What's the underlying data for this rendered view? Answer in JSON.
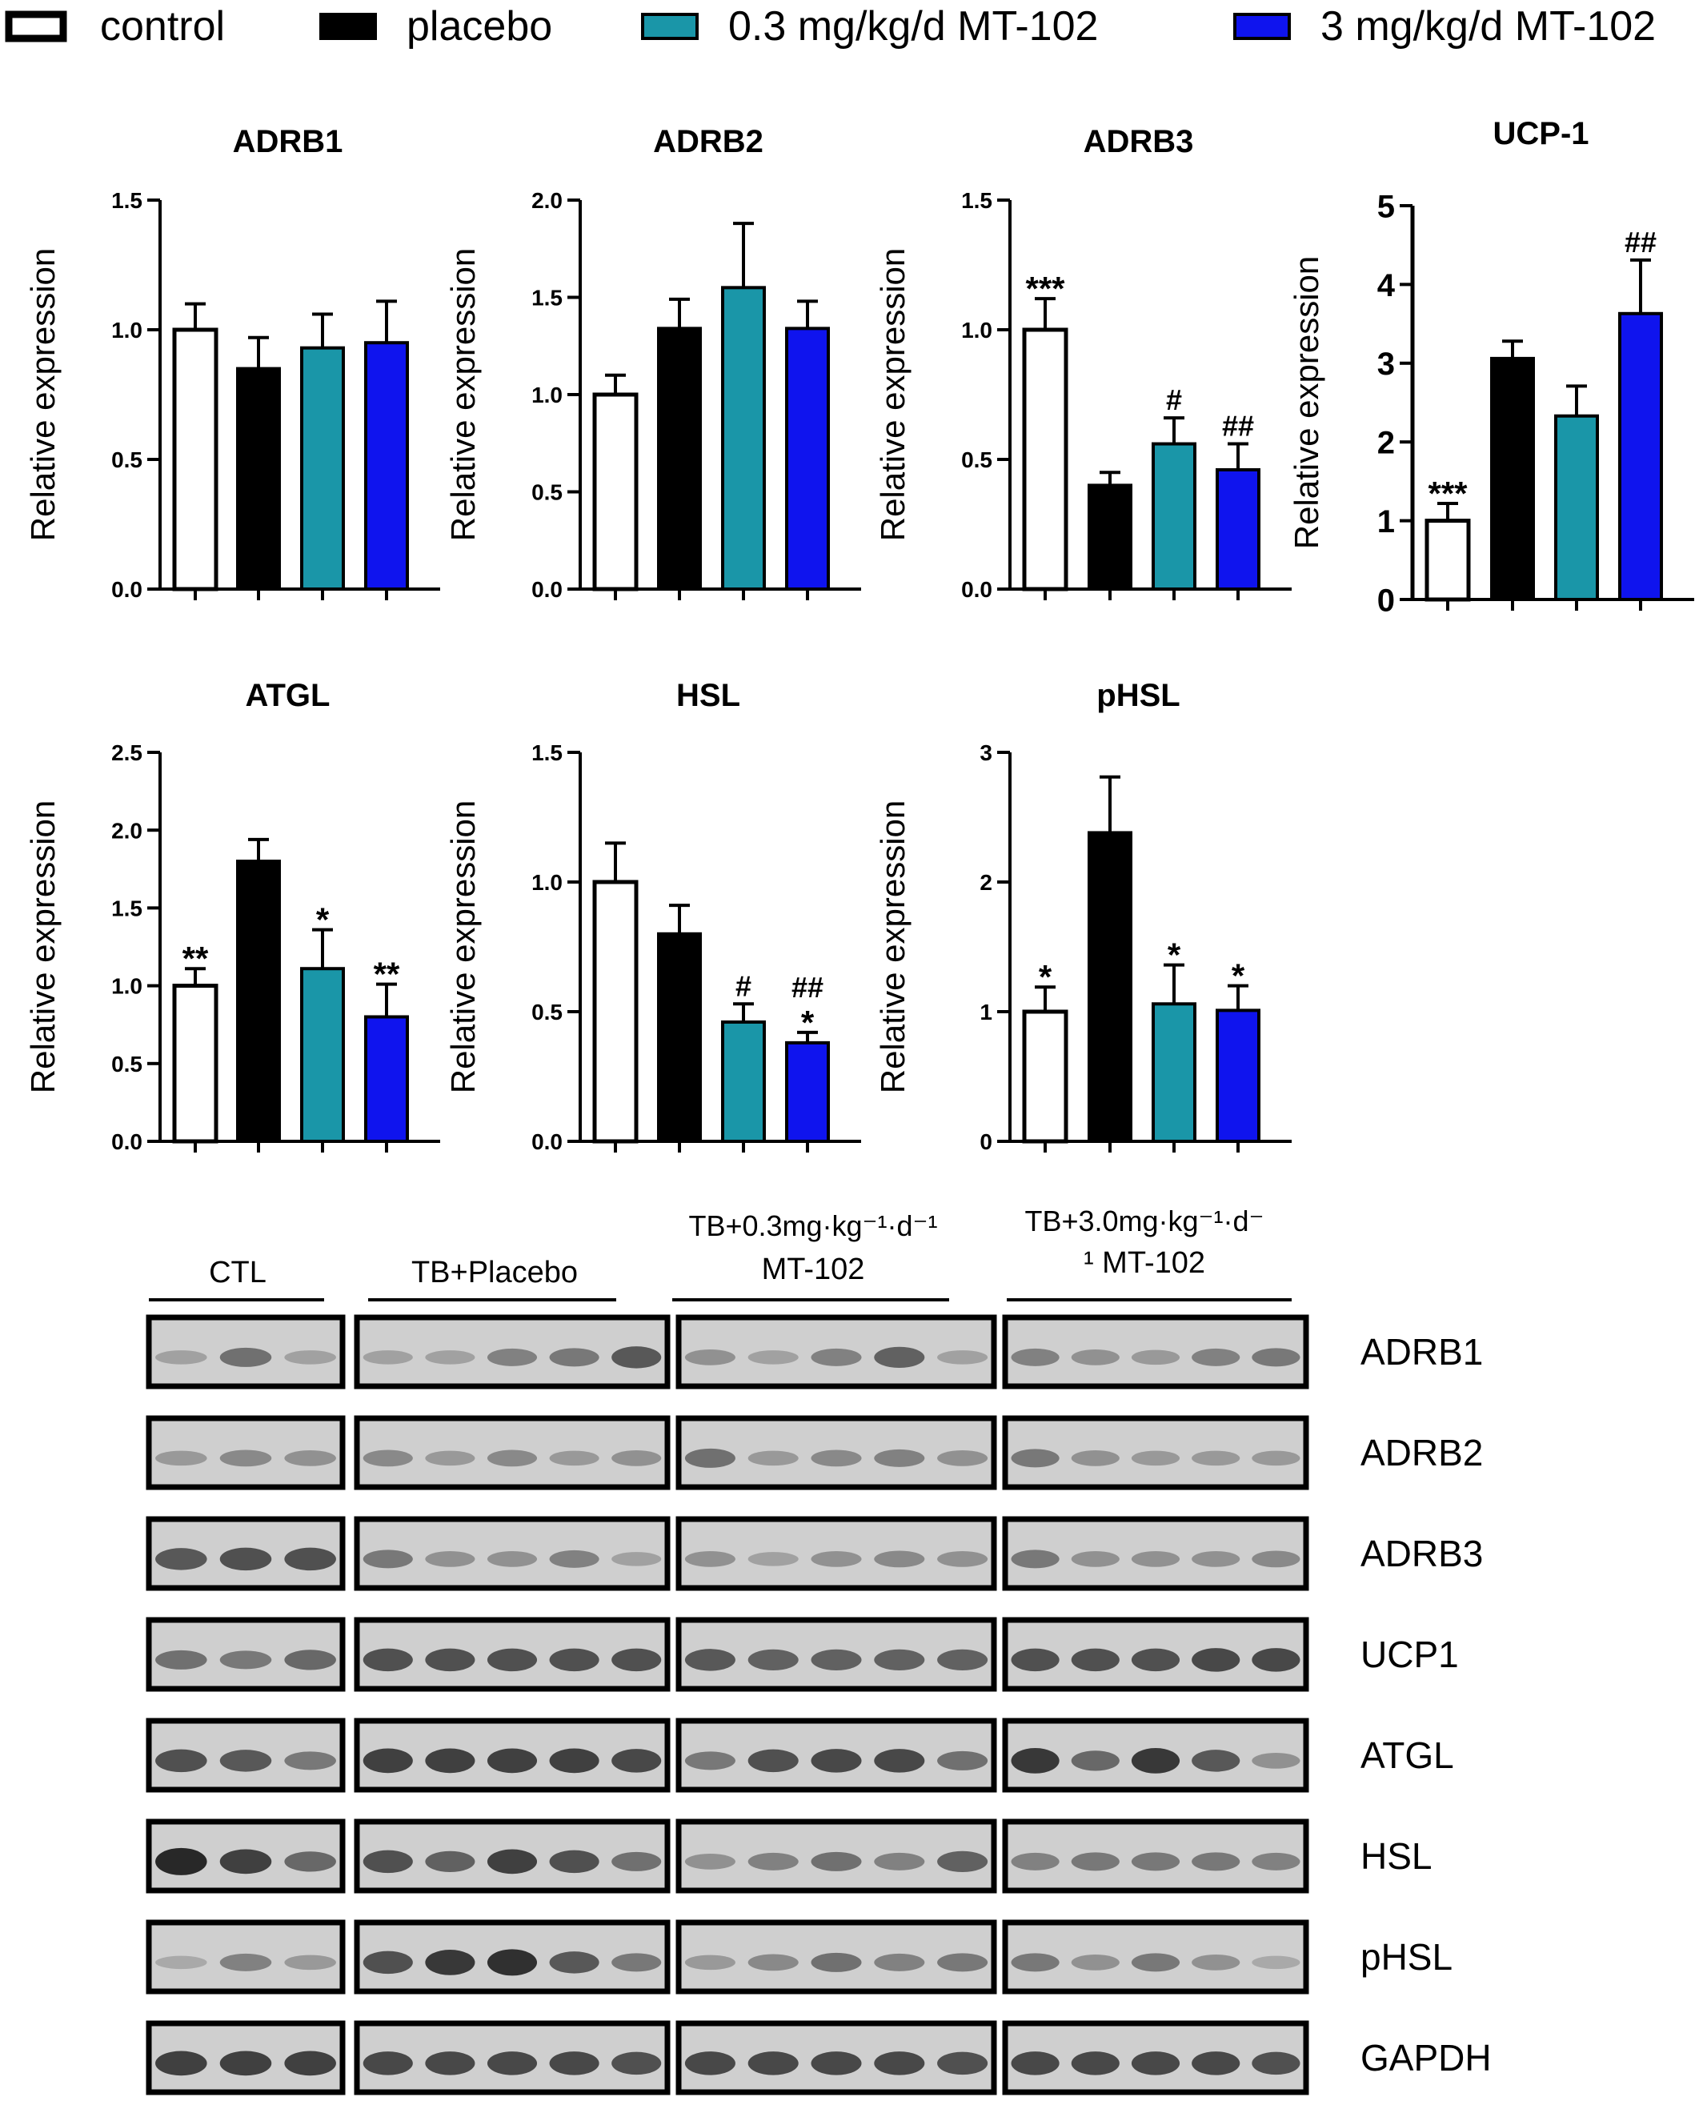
{
  "legend": [
    {
      "label": "control",
      "color": "#ffffff"
    },
    {
      "label": "placebo",
      "color": "#000000"
    },
    {
      "label": "0.3 mg/kg/d MT-102",
      "color": "#1a96a8"
    },
    {
      "label": "3 mg/kg/d MT-102",
      "color": "#0f14ee"
    }
  ],
  "chart_data": [
    {
      "type": "bar",
      "title": "ADRB1",
      "ylabel": "Relative expression",
      "ylim": [
        0,
        1.5
      ],
      "ticks": [
        "0.0",
        "0.5",
        "1.0",
        "1.5"
      ],
      "series": [
        {
          "name": "control",
          "values": [
            1.0
          ]
        },
        {
          "name": "placebo",
          "values": [
            0.85
          ]
        },
        {
          "name": "0.3 mg/kg/d MT-102",
          "values": [
            0.93
          ]
        },
        {
          "name": "3 mg/kg/d MT-102",
          "values": [
            0.95
          ]
        }
      ],
      "errors": [
        0.1,
        0.12,
        0.13,
        0.16
      ],
      "annotations": [
        [],
        [],
        [],
        []
      ]
    },
    {
      "type": "bar",
      "title": "ADRB2",
      "ylabel": "Relative expression",
      "ylim": [
        0,
        2.0
      ],
      "ticks": [
        "0.0",
        "0.5",
        "1.0",
        "1.5",
        "2.0"
      ],
      "series": [
        {
          "name": "control",
          "values": [
            1.0
          ]
        },
        {
          "name": "placebo",
          "values": [
            1.34
          ]
        },
        {
          "name": "0.3 mg/kg/d MT-102",
          "values": [
            1.55
          ]
        },
        {
          "name": "3 mg/kg/d MT-102",
          "values": [
            1.34
          ]
        }
      ],
      "errors": [
        0.1,
        0.15,
        0.33,
        0.14
      ],
      "annotations": [
        [],
        [],
        [],
        []
      ]
    },
    {
      "type": "bar",
      "title": "ADRB3",
      "ylabel": "Relative expression",
      "ylim": [
        0,
        1.5
      ],
      "ticks": [
        "0.0",
        "0.5",
        "1.0",
        "1.5"
      ],
      "series": [
        {
          "name": "control",
          "values": [
            1.0
          ]
        },
        {
          "name": "placebo",
          "values": [
            0.4
          ]
        },
        {
          "name": "0.3 mg/kg/d MT-102",
          "values": [
            0.56
          ]
        },
        {
          "name": "3 mg/kg/d MT-102",
          "values": [
            0.46
          ]
        }
      ],
      "errors": [
        0.12,
        0.05,
        0.1,
        0.1
      ],
      "annotations": [
        [
          "***"
        ],
        [],
        [
          "#"
        ],
        [
          "##"
        ]
      ]
    },
    {
      "type": "bar",
      "title": "UCP-1",
      "ylabel": "Relative expression",
      "ylim": [
        0,
        5
      ],
      "ticks": [
        "0",
        "1",
        "2",
        "3",
        "4",
        "5"
      ],
      "series": [
        {
          "name": "control",
          "values": [
            1.0
          ]
        },
        {
          "name": "placebo",
          "values": [
            3.06
          ]
        },
        {
          "name": "0.3 mg/kg/d MT-102",
          "values": [
            2.33
          ]
        },
        {
          "name": "3 mg/kg/d MT-102",
          "values": [
            3.63
          ]
        }
      ],
      "errors": [
        0.22,
        0.22,
        0.38,
        0.68
      ],
      "annotations": [
        [
          "***"
        ],
        [],
        [],
        [
          "##"
        ]
      ]
    },
    {
      "type": "bar",
      "title": "ATGL",
      "ylabel": "Relative expression",
      "ylim": [
        0,
        2.5
      ],
      "ticks": [
        "0.0",
        "0.5",
        "1.0",
        "1.5",
        "2.0",
        "2.5"
      ],
      "series": [
        {
          "name": "control",
          "values": [
            1.0
          ]
        },
        {
          "name": "placebo",
          "values": [
            1.8
          ]
        },
        {
          "name": "0.3 mg/kg/d MT-102",
          "values": [
            1.11
          ]
        },
        {
          "name": "3 mg/kg/d MT-102",
          "values": [
            0.8
          ]
        }
      ],
      "errors": [
        0.11,
        0.14,
        0.25,
        0.21
      ],
      "annotations": [
        [
          "**"
        ],
        [],
        [
          "*"
        ],
        [
          "**"
        ]
      ]
    },
    {
      "type": "bar",
      "title": "HSL",
      "ylabel": "Relative expression",
      "ylim": [
        0,
        1.5
      ],
      "ticks": [
        "0.0",
        "0.5",
        "1.0",
        "1.5"
      ],
      "series": [
        {
          "name": "control",
          "values": [
            1.0
          ]
        },
        {
          "name": "placebo",
          "values": [
            0.8
          ]
        },
        {
          "name": "0.3 mg/kg/d MT-102",
          "values": [
            0.46
          ]
        },
        {
          "name": "3 mg/kg/d MT-102",
          "values": [
            0.38
          ]
        }
      ],
      "errors": [
        0.15,
        0.11,
        0.07,
        0.04
      ],
      "annotations": [
        [],
        [],
        [
          "#"
        ],
        [
          "*",
          "##"
        ]
      ]
    },
    {
      "type": "bar",
      "title": "pHSL",
      "ylabel": "Relative expression",
      "ylim": [
        0,
        3
      ],
      "ticks": [
        "0",
        "1",
        "2",
        "3"
      ],
      "series": [
        {
          "name": "control",
          "values": [
            1.0
          ]
        },
        {
          "name": "placebo",
          "values": [
            2.38
          ]
        },
        {
          "name": "0.3 mg/kg/d MT-102",
          "values": [
            1.06
          ]
        },
        {
          "name": "3 mg/kg/d MT-102",
          "values": [
            1.01
          ]
        }
      ],
      "errors": [
        0.19,
        0.43,
        0.3,
        0.19
      ],
      "annotations": [
        [
          "*"
        ],
        [],
        [
          "*"
        ],
        [
          "*"
        ]
      ]
    }
  ],
  "blot": {
    "groups": [
      {
        "label": "CTL",
        "lanes": 3
      },
      {
        "label": "TB+Placebo",
        "lanes": 5
      },
      {
        "label_line1": "TB+0.3mg·kg⁻¹·d⁻¹",
        "label_line2": "MT-102",
        "lanes": 5
      },
      {
        "label_line1": "TB+3.0mg·kg⁻¹·d⁻",
        "label_line2": "¹ MT-102",
        "lanes": 5
      }
    ],
    "rows": [
      {
        "label": "ADRB1",
        "intensity": [
          [
            0.25,
            0.55,
            0.25
          ],
          [
            0.25,
            0.25,
            0.45,
            0.5,
            0.7
          ],
          [
            0.35,
            0.25,
            0.45,
            0.65,
            0.25
          ],
          [
            0.45,
            0.35,
            0.3,
            0.45,
            0.5
          ]
        ]
      },
      {
        "label": "ADRB2",
        "intensity": [
          [
            0.3,
            0.4,
            0.35
          ],
          [
            0.4,
            0.3,
            0.4,
            0.3,
            0.35
          ],
          [
            0.55,
            0.3,
            0.4,
            0.45,
            0.35
          ],
          [
            0.5,
            0.35,
            0.3,
            0.3,
            0.3
          ]
        ]
      },
      {
        "label": "ADRB3",
        "intensity": [
          [
            0.7,
            0.75,
            0.75
          ],
          [
            0.5,
            0.35,
            0.35,
            0.45,
            0.25
          ],
          [
            0.35,
            0.25,
            0.35,
            0.4,
            0.35
          ],
          [
            0.5,
            0.35,
            0.35,
            0.35,
            0.4
          ]
        ]
      },
      {
        "label": "UCP1",
        "intensity": [
          [
            0.55,
            0.5,
            0.6
          ],
          [
            0.75,
            0.75,
            0.75,
            0.75,
            0.75
          ],
          [
            0.7,
            0.65,
            0.65,
            0.65,
            0.65
          ],
          [
            0.75,
            0.75,
            0.75,
            0.8,
            0.8
          ]
        ]
      },
      {
        "label": "ATGL",
        "intensity": [
          [
            0.75,
            0.7,
            0.5
          ],
          [
            0.85,
            0.85,
            0.85,
            0.85,
            0.8
          ],
          [
            0.5,
            0.75,
            0.8,
            0.8,
            0.55
          ],
          [
            0.9,
            0.6,
            0.9,
            0.7,
            0.35
          ]
        ]
      },
      {
        "label": "HSL",
        "intensity": [
          [
            1.0,
            0.85,
            0.6
          ],
          [
            0.75,
            0.65,
            0.85,
            0.75,
            0.55
          ],
          [
            0.35,
            0.45,
            0.55,
            0.45,
            0.65
          ],
          [
            0.45,
            0.5,
            0.5,
            0.5,
            0.45
          ]
        ]
      },
      {
        "label": "pHSL",
        "intensity": [
          [
            0.2,
            0.45,
            0.3
          ],
          [
            0.75,
            0.9,
            0.95,
            0.7,
            0.5
          ],
          [
            0.3,
            0.4,
            0.55,
            0.45,
            0.5
          ],
          [
            0.5,
            0.35,
            0.5,
            0.35,
            0.2
          ]
        ]
      },
      {
        "label": "GAPDH",
        "intensity": [
          [
            0.85,
            0.85,
            0.85
          ],
          [
            0.8,
            0.8,
            0.8,
            0.8,
            0.75
          ],
          [
            0.8,
            0.8,
            0.8,
            0.8,
            0.75
          ],
          [
            0.8,
            0.8,
            0.8,
            0.8,
            0.75
          ]
        ]
      }
    ]
  }
}
